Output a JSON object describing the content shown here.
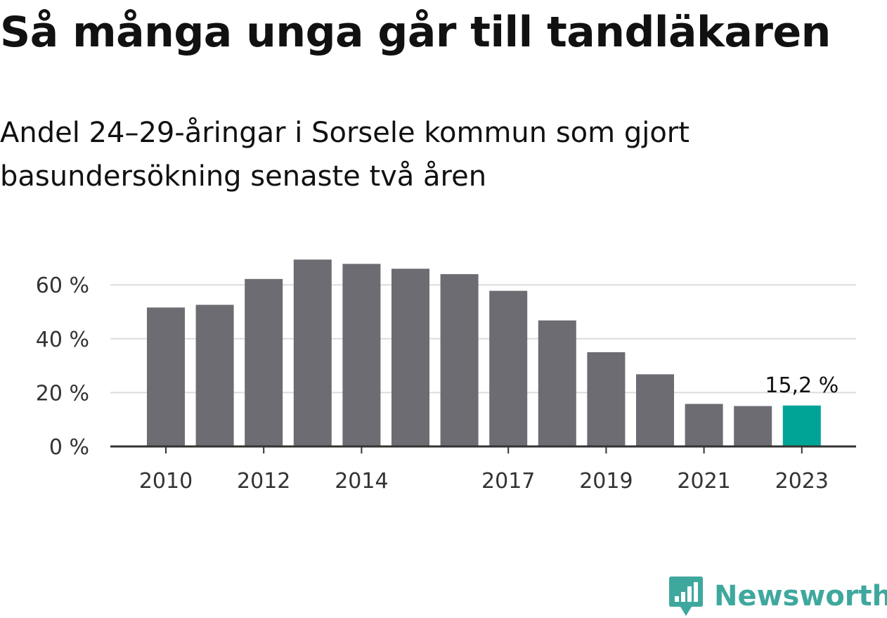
{
  "title": "Så många unga går till tandläkaren",
  "subtitle": "Andel 24–29-åringar i Sorsele kommun som gjort basundersökning senaste två åren",
  "brand": {
    "name": "Newsworthy",
    "color": "#3fa89e",
    "icon": "newsworthy-logo-icon"
  },
  "colors": {
    "bar": "#6d6c72",
    "highlight": "#00a496",
    "grid": "#dcdcdc",
    "axis": "#333333",
    "text": "#111111"
  },
  "chart_data": {
    "type": "bar",
    "title": "Så många unga går till tandläkaren",
    "subtitle": "Andel 24–29-åringar i Sorsele kommun som gjort basundersökning senaste två åren",
    "xlabel": "",
    "ylabel": "",
    "categories": [
      "2010",
      "2011",
      "2012",
      "2013",
      "2014",
      "2015",
      "2016",
      "2017",
      "2018",
      "2019",
      "2020",
      "2021",
      "2022",
      "2023"
    ],
    "x_tick_labels": [
      "2010",
      "2012",
      "2014",
      "2017",
      "2019",
      "2021",
      "2023"
    ],
    "values": [
      51.6,
      52.6,
      62.2,
      69.4,
      67.8,
      66.0,
      64.0,
      57.8,
      46.8,
      35.0,
      26.8,
      15.8,
      15.0,
      15.2
    ],
    "highlight_index": 13,
    "annotation": "15,2 %",
    "y_ticks": [
      0,
      20,
      40,
      60
    ],
    "y_tick_labels": [
      "0 %",
      "20 %",
      "40 %",
      "60 %"
    ],
    "ylim": [
      0,
      72
    ],
    "grid": true,
    "legend": "none"
  }
}
